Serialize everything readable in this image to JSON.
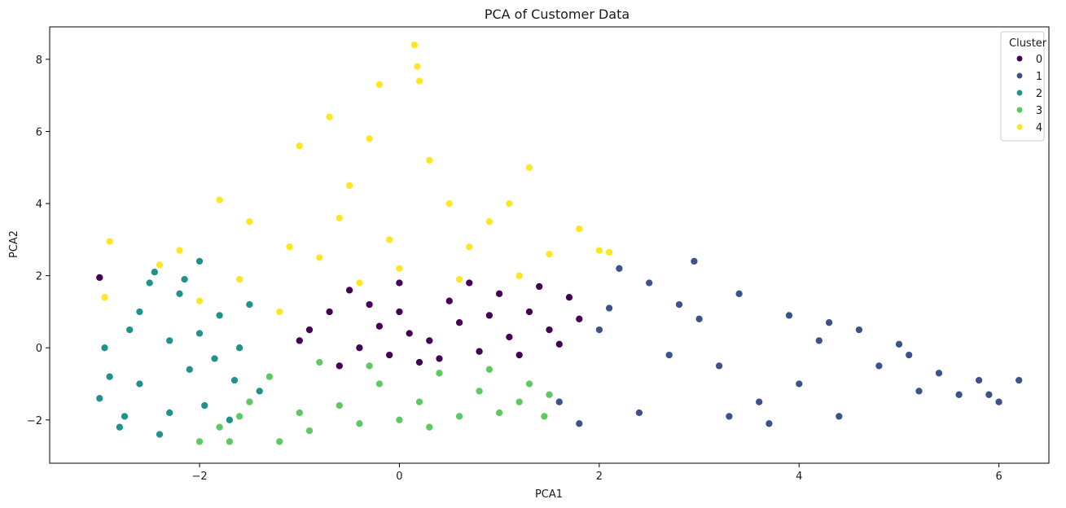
{
  "chart_data": {
    "type": "scatter",
    "title": "PCA of Customer Data",
    "xlabel": "PCA1",
    "ylabel": "PCA2",
    "xlim": [
      -3.5,
      6.5
    ],
    "ylim": [
      -3.2,
      8.9
    ],
    "xticks": [
      -2,
      0,
      2,
      4,
      6
    ],
    "yticks": [
      -2,
      0,
      2,
      4,
      6,
      8
    ],
    "xtick_labels": [
      "−2",
      "0",
      "2",
      "4",
      "6"
    ],
    "ytick_labels": [
      "−2",
      "0",
      "2",
      "4",
      "6",
      "8"
    ],
    "grid": false,
    "legend": {
      "title": "Cluster",
      "position": "top-right",
      "entries": [
        "0",
        "1",
        "2",
        "3",
        "4"
      ]
    },
    "series": [
      {
        "name": "0",
        "color": "#440154",
        "points": [
          [
            -3.0,
            1.95
          ],
          [
            -0.9,
            0.5
          ],
          [
            -0.5,
            1.6
          ],
          [
            -0.3,
            1.2
          ],
          [
            -0.2,
            0.6
          ],
          [
            0.0,
            1.0
          ],
          [
            0.1,
            0.4
          ],
          [
            0.3,
            0.2
          ],
          [
            0.5,
            1.3
          ],
          [
            0.6,
            0.7
          ],
          [
            0.8,
            -0.1
          ],
          [
            1.0,
            1.5
          ],
          [
            1.1,
            0.3
          ],
          [
            1.3,
            1.0
          ],
          [
            1.5,
            0.5
          ],
          [
            1.7,
            1.4
          ],
          [
            1.8,
            0.8
          ],
          [
            -1.0,
            0.2
          ],
          [
            -0.6,
            -0.5
          ],
          [
            -0.1,
            -0.2
          ],
          [
            0.2,
            -0.4
          ],
          [
            0.4,
            -0.3
          ],
          [
            0.9,
            0.9
          ],
          [
            1.2,
            -0.2
          ],
          [
            1.6,
            0.1
          ],
          [
            -0.7,
            1.0
          ],
          [
            -0.4,
            0.0
          ],
          [
            0.7,
            1.8
          ],
          [
            0.0,
            1.8
          ],
          [
            1.4,
            1.7
          ]
        ]
      },
      {
        "name": "1",
        "color": "#3b528b",
        "points": [
          [
            1.8,
            -2.1
          ],
          [
            2.0,
            0.5
          ],
          [
            2.2,
            2.2
          ],
          [
            2.5,
            1.8
          ],
          [
            2.8,
            1.2
          ],
          [
            2.95,
            2.4
          ],
          [
            3.0,
            0.8
          ],
          [
            3.2,
            -0.5
          ],
          [
            3.4,
            1.5
          ],
          [
            3.6,
            -1.5
          ],
          [
            3.7,
            -2.1
          ],
          [
            3.9,
            0.9
          ],
          [
            4.0,
            -1.0
          ],
          [
            4.2,
            0.2
          ],
          [
            4.4,
            -1.9
          ],
          [
            4.6,
            0.5
          ],
          [
            4.8,
            -0.5
          ],
          [
            5.0,
            0.1
          ],
          [
            5.2,
            -1.2
          ],
          [
            5.4,
            -0.7
          ],
          [
            5.6,
            -1.3
          ],
          [
            5.8,
            -0.9
          ],
          [
            6.0,
            -1.5
          ],
          [
            6.2,
            -0.9
          ],
          [
            1.6,
            -1.5
          ],
          [
            2.4,
            -1.8
          ],
          [
            2.7,
            -0.2
          ],
          [
            3.3,
            -1.9
          ],
          [
            4.3,
            0.7
          ],
          [
            5.1,
            -0.2
          ],
          [
            5.9,
            -1.3
          ],
          [
            2.1,
            1.1
          ]
        ]
      },
      {
        "name": "2",
        "color": "#21918c",
        "points": [
          [
            -3.0,
            -1.4
          ],
          [
            -2.95,
            0.0
          ],
          [
            -2.8,
            -2.2
          ],
          [
            -2.7,
            0.5
          ],
          [
            -2.6,
            -1.0
          ],
          [
            -2.5,
            1.8
          ],
          [
            -2.4,
            -2.4
          ],
          [
            -2.3,
            0.2
          ],
          [
            -2.2,
            1.5
          ],
          [
            -2.1,
            -0.6
          ],
          [
            -2.0,
            2.4
          ],
          [
            -1.95,
            -1.6
          ],
          [
            -1.8,
            0.9
          ],
          [
            -1.7,
            -2.0
          ],
          [
            -1.6,
            0.0
          ],
          [
            -1.5,
            1.2
          ],
          [
            -1.4,
            -1.2
          ],
          [
            -2.9,
            -0.8
          ],
          [
            -2.6,
            1.0
          ],
          [
            -2.3,
            -1.8
          ],
          [
            -2.0,
            0.4
          ],
          [
            -1.85,
            -0.3
          ],
          [
            -2.45,
            2.1
          ],
          [
            -2.75,
            -1.9
          ],
          [
            -2.15,
            1.9
          ],
          [
            -1.65,
            -0.9
          ]
        ]
      },
      {
        "name": "3",
        "color": "#5ec962",
        "points": [
          [
            -2.0,
            -2.6
          ],
          [
            -1.8,
            -2.2
          ],
          [
            -1.7,
            -2.6
          ],
          [
            -1.5,
            -1.5
          ],
          [
            -1.2,
            -2.6
          ],
          [
            -1.0,
            -1.8
          ],
          [
            -0.8,
            -0.4
          ],
          [
            -0.6,
            -1.6
          ],
          [
            -0.4,
            -2.1
          ],
          [
            -0.2,
            -1.0
          ],
          [
            0.0,
            -2.0
          ],
          [
            0.2,
            -1.5
          ],
          [
            0.4,
            -0.7
          ],
          [
            0.6,
            -1.9
          ],
          [
            0.8,
            -1.2
          ],
          [
            1.0,
            -1.8
          ],
          [
            1.2,
            -1.5
          ],
          [
            1.5,
            -1.3
          ],
          [
            1.45,
            -1.9
          ],
          [
            -1.3,
            -0.8
          ],
          [
            -0.9,
            -2.3
          ],
          [
            -0.3,
            -0.5
          ],
          [
            0.3,
            -2.2
          ],
          [
            0.9,
            -0.6
          ],
          [
            1.3,
            -1.0
          ],
          [
            -1.6,
            -1.9
          ]
        ]
      },
      {
        "name": "4",
        "color": "#fde725",
        "points": [
          [
            -2.95,
            1.4
          ],
          [
            -2.9,
            2.95
          ],
          [
            -2.4,
            2.3
          ],
          [
            -2.0,
            1.3
          ],
          [
            -1.8,
            4.1
          ],
          [
            -1.5,
            3.5
          ],
          [
            -1.2,
            1.0
          ],
          [
            -1.0,
            5.6
          ],
          [
            -0.8,
            2.5
          ],
          [
            -0.7,
            6.4
          ],
          [
            -0.5,
            4.5
          ],
          [
            -0.3,
            5.8
          ],
          [
            -0.2,
            7.3
          ],
          [
            -0.1,
            3.0
          ],
          [
            0.15,
            8.4
          ],
          [
            0.18,
            7.8
          ],
          [
            0.2,
            7.4
          ],
          [
            0.3,
            5.2
          ],
          [
            0.5,
            4.0
          ],
          [
            0.7,
            2.8
          ],
          [
            0.9,
            3.5
          ],
          [
            1.1,
            4.0
          ],
          [
            1.3,
            5.0
          ],
          [
            1.5,
            2.6
          ],
          [
            1.8,
            3.3
          ],
          [
            2.0,
            2.7
          ],
          [
            2.1,
            2.65
          ],
          [
            -1.6,
            1.9
          ],
          [
            -1.1,
            2.8
          ],
          [
            -0.4,
            1.8
          ],
          [
            0.0,
            2.2
          ],
          [
            0.6,
            1.9
          ],
          [
            1.2,
            2.0
          ],
          [
            -2.2,
            2.7
          ],
          [
            -0.6,
            3.6
          ]
        ]
      }
    ]
  }
}
